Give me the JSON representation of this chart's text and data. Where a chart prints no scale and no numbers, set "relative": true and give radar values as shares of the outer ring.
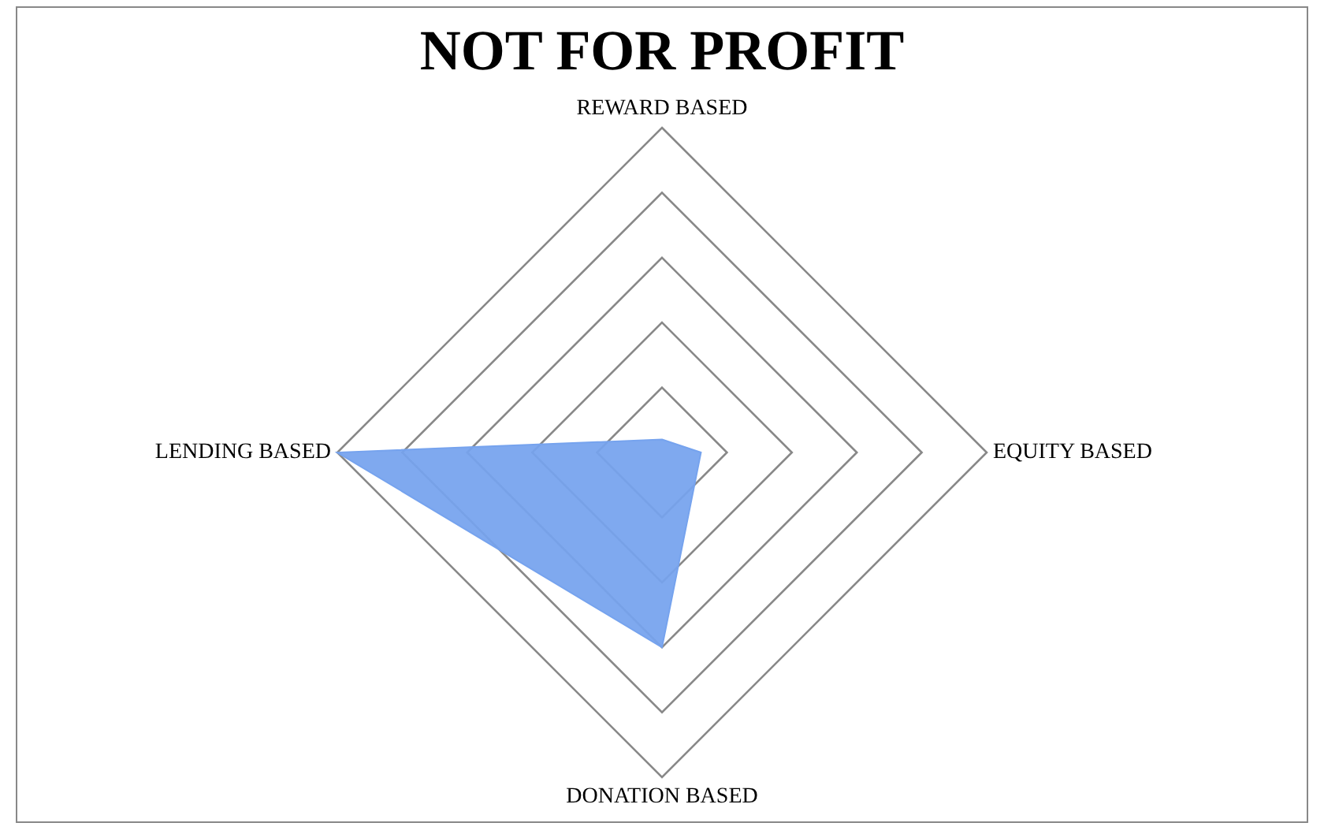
{
  "chart_data": {
    "type": "radar",
    "title": "NOT FOR PROFIT",
    "categories": [
      "REWARD BASED",
      "EQUITY BASED",
      "DONATION BASED",
      "LENDING BASED"
    ],
    "relative": true,
    "grid": true,
    "legend": false,
    "marker": "none",
    "series": [
      {
        "color": "#76a3ee",
        "values": [
          0.04,
          0.12,
          0.6,
          1
        ]
      }
    ]
  }
}
